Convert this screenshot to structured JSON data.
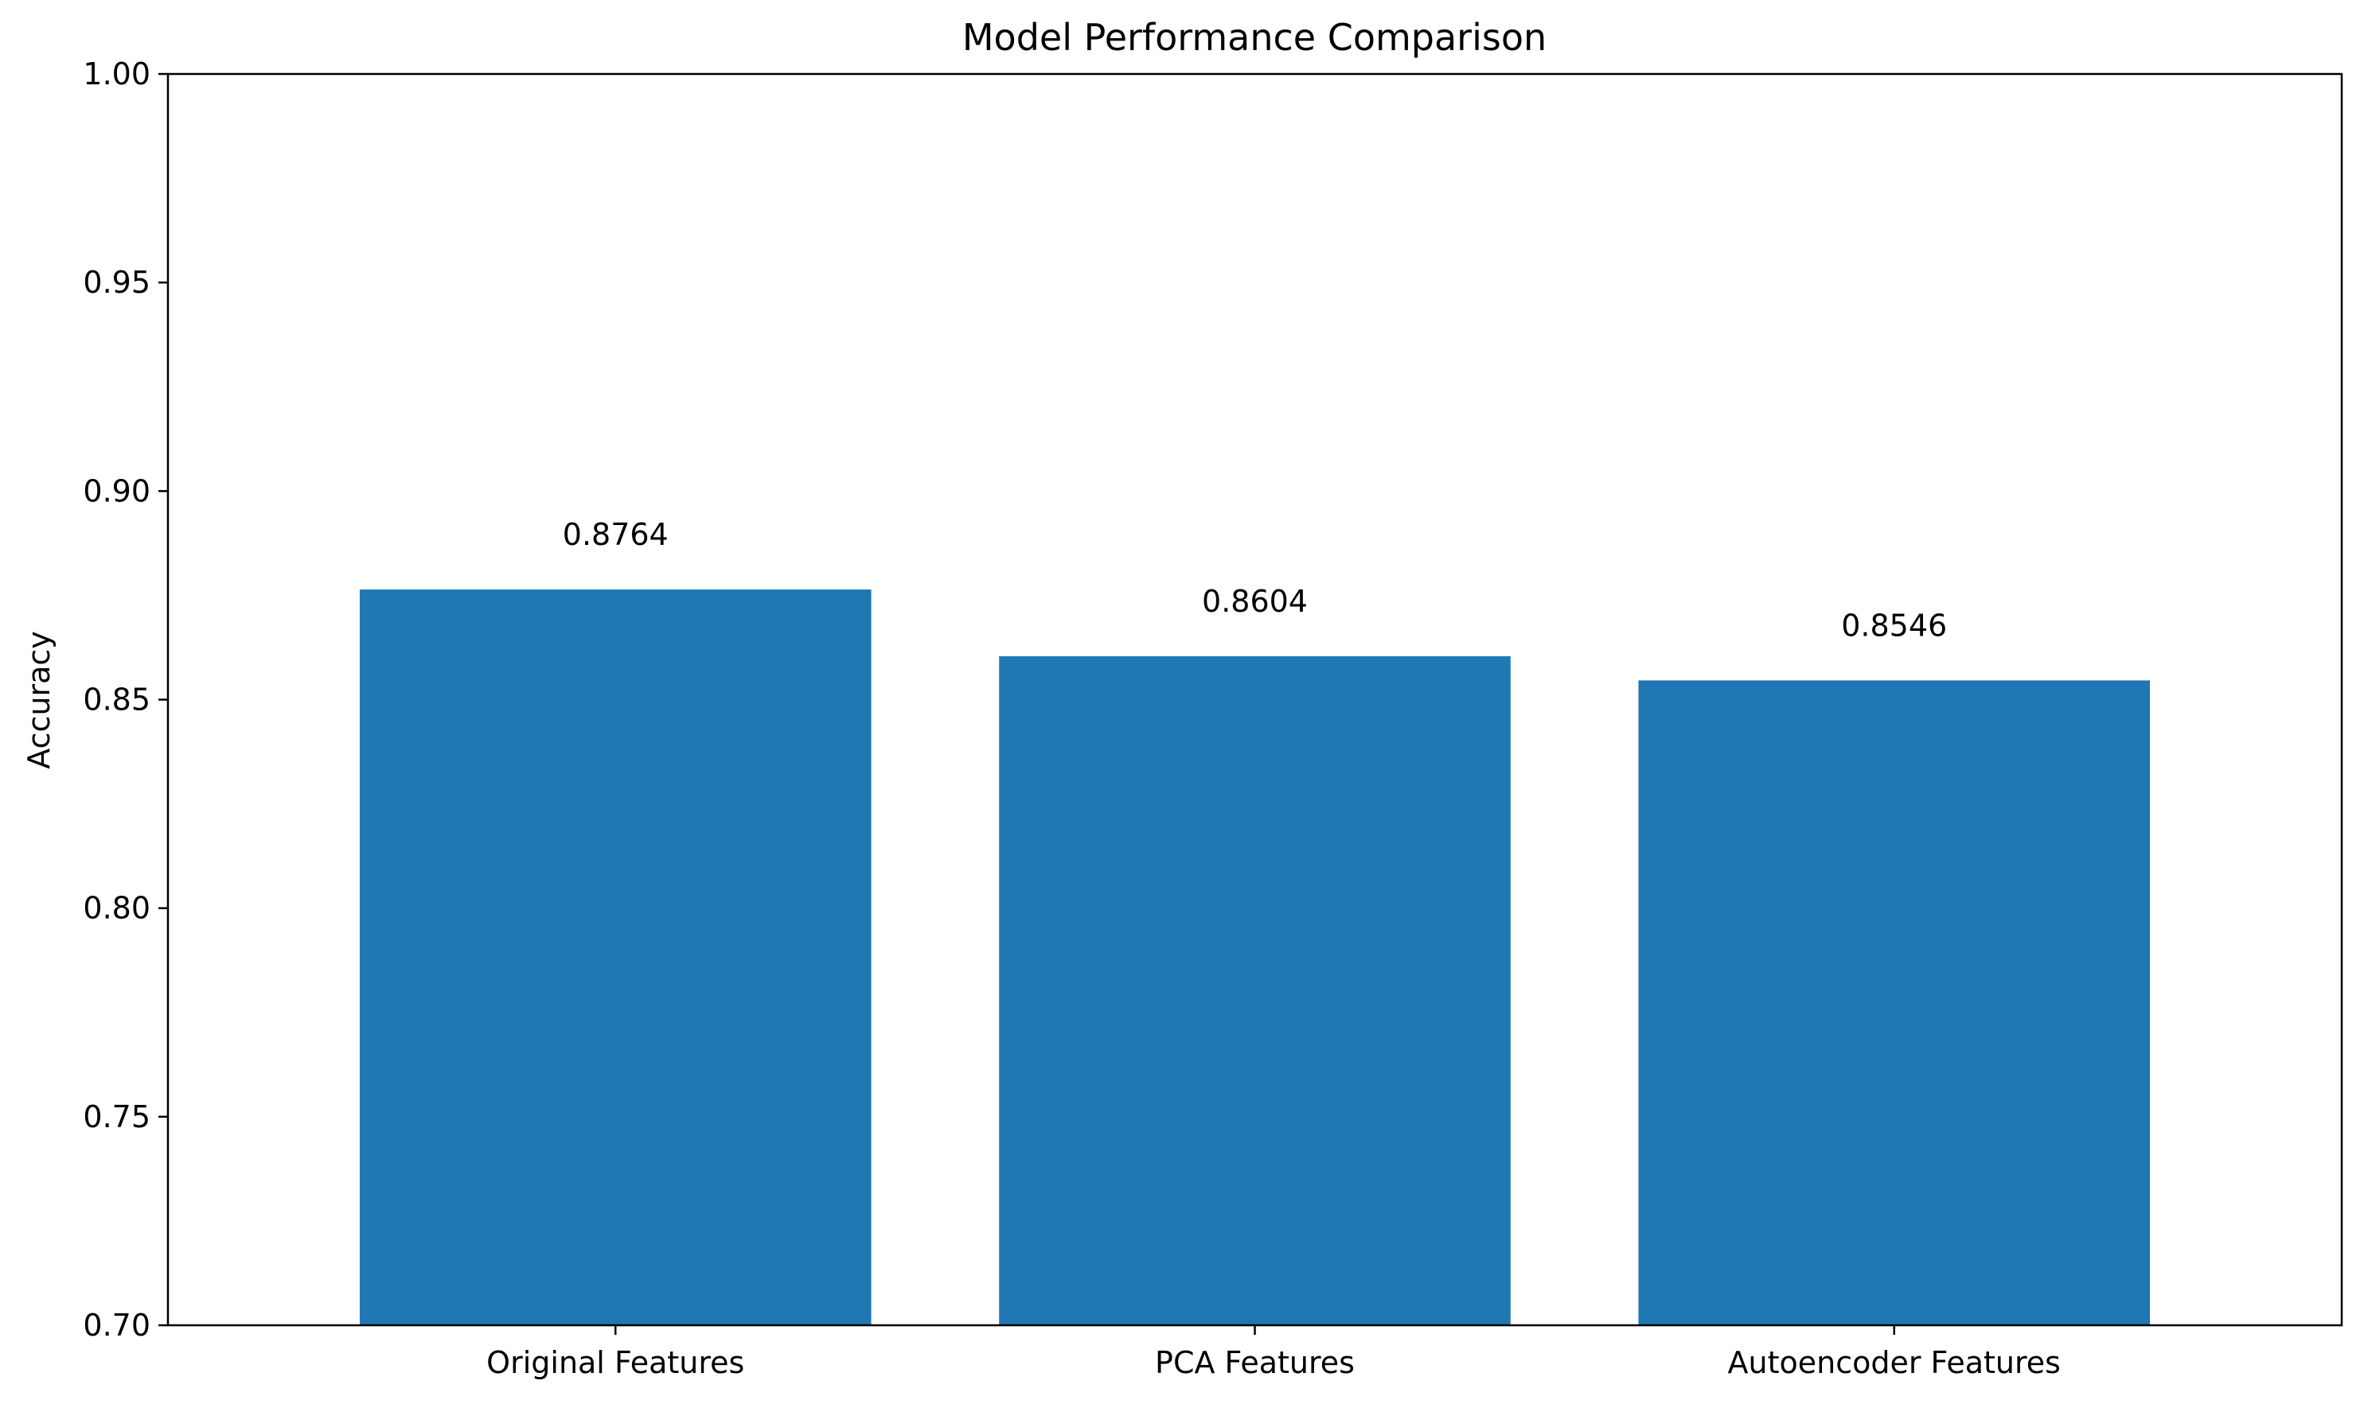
{
  "chart_data": {
    "type": "bar",
    "title": "Model Performance Comparison",
    "xlabel": "",
    "ylabel": "Accuracy",
    "categories": [
      "Original Features",
      "PCA Features",
      "Autoencoder Features"
    ],
    "values": [
      0.8764,
      0.8604,
      0.8546
    ],
    "data_labels": [
      "0.8764",
      "0.8604",
      "0.8546"
    ],
    "ylim": [
      0.7,
      1.0
    ],
    "yticks": [
      0.7,
      0.75,
      0.8,
      0.85,
      0.9,
      0.95,
      1.0
    ],
    "ytick_labels": [
      "0.70",
      "0.75",
      "0.80",
      "0.85",
      "0.90",
      "0.95",
      "1.00"
    ],
    "grid": false,
    "legend": "none",
    "bar_color": "#1f77b4"
  }
}
